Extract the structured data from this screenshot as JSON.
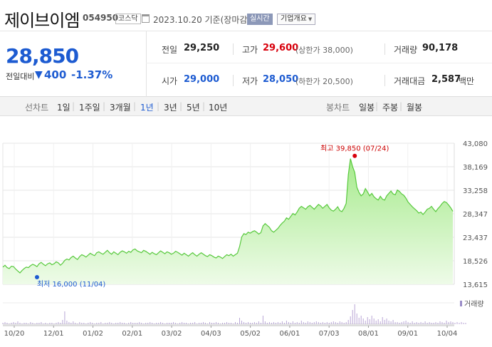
{
  "header": {
    "name": "제이브이엠",
    "code": "054950",
    "market_badge": "코스닥",
    "date": "2023.10.20 기준(장마감)",
    "live_button": "실시간",
    "info_button": "기업개요",
    "icons": {
      "calendar": "calendar-icon",
      "dropdown": "chevron-down-icon"
    }
  },
  "summary": {
    "price": "28,850",
    "change_label": "전일대비",
    "change_arrow": "▼",
    "change_value": "400",
    "change_rate": "-1.37%",
    "colors": {
      "down": "#1d5bd1",
      "up": "#d8000c"
    },
    "cells": [
      {
        "label": "전일",
        "value": "29,250",
        "sub": ""
      },
      {
        "label": "고가",
        "value": "29,600",
        "sub": "(상한가 38,000)"
      },
      {
        "label": "거래량",
        "value": "90,178",
        "sub": ""
      },
      {
        "label": "시가",
        "value": "29,000",
        "sub": ""
      },
      {
        "label": "저가",
        "value": "28,050",
        "sub": "(하한가 20,500)"
      },
      {
        "label": "거래대금",
        "value": "2,587",
        "sub": "백만"
      }
    ]
  },
  "periods": {
    "line_label": "선차트",
    "line_options": [
      "1일",
      "1주일",
      "3개월",
      "1년",
      "3년",
      "5년",
      "10년"
    ],
    "active": "1년",
    "candle_label": "봉차트",
    "candle_options": [
      "일봉",
      "주봉",
      "월봉"
    ]
  },
  "chart_data": {
    "type": "area",
    "color": "#57c93c",
    "y_ticks": [
      "43,080",
      "38,169",
      "33,258",
      "28,347",
      "23,437",
      "18,526",
      "13,615"
    ],
    "ylim": [
      13615,
      43080
    ],
    "x_ticks": [
      "10/20",
      "12/01",
      "01/02",
      "02/01",
      "03/02",
      "04/03",
      "05/02",
      "06/01",
      "07/03",
      "08/01",
      "09/01",
      "10/04"
    ],
    "grid": true,
    "high_annotation": "최고 39,850 (07/24)",
    "high": {
      "value": 39850,
      "index": 165
    },
    "low_annotation": "최저 16,000 (11/04)",
    "low": {
      "value": 16000,
      "index": 8
    },
    "volume_legend": "거래량",
    "prices": [
      17200,
      17600,
      17100,
      16900,
      17400,
      17300,
      16800,
      16400,
      16000,
      16500,
      16900,
      17200,
      17100,
      17500,
      17800,
      17600,
      17300,
      17900,
      18200,
      17800,
      17500,
      17900,
      18100,
      17700,
      17900,
      18300,
      18100,
      17600,
      18000,
      18600,
      18900,
      18700,
      19200,
      19500,
      19100,
      18800,
      19400,
      19800,
      19600,
      19300,
      19700,
      20100,
      19800,
      19600,
      20200,
      20400,
      20100,
      19900,
      20300,
      20700,
      20200,
      19900,
      20400,
      20100,
      19800,
      20300,
      20600,
      20400,
      20100,
      20500,
      20300,
      20800,
      21000,
      20600,
      20400,
      20200,
      20700,
      20500,
      20200,
      19900,
      20300,
      20000,
      19800,
      20200,
      20600,
      20300,
      20000,
      20400,
      20200,
      19900,
      20100,
      20500,
      20300,
      20000,
      19700,
      20100,
      19800,
      19500,
      19900,
      20200,
      19800,
      19500,
      19900,
      20200,
      19900,
      19600,
      19400,
      19800,
      19600,
      19300,
      19100,
      19500,
      19300,
      19000,
      19400,
      19800,
      19600,
      19900,
      19500,
      19800,
      20100,
      21500,
      23500,
      24200,
      24000,
      24500,
      24300,
      24600,
      24800,
      24500,
      24100,
      24400,
      25800,
      26300,
      25900,
      25500,
      24800,
      24500,
      24900,
      25300,
      25900,
      26400,
      26800,
      27500,
      27200,
      27800,
      28400,
      28100,
      28700,
      29500,
      29900,
      29600,
      29300,
      29800,
      30100,
      29700,
      29300,
      29800,
      30300,
      30000,
      29500,
      29900,
      30300,
      29600,
      29100,
      28900,
      29300,
      29800,
      29000,
      28800,
      29500,
      30500,
      36500,
      39850,
      38200,
      37000,
      33900,
      32800,
      32100,
      32500,
      33600,
      32900,
      32100,
      32600,
      31900,
      31500,
      31200,
      32000,
      31400,
      31200,
      32100,
      32600,
      33100,
      32500,
      32300,
      33300,
      33000,
      32500,
      32200,
      31600,
      30800,
      30300,
      29800,
      29400,
      29000,
      28500,
      28700,
      28200,
      28700,
      29300,
      29500,
      29900,
      29300,
      28800,
      29400,
      29900,
      30500,
      30900,
      30700,
      30200,
      29600,
      28850
    ],
    "volumes": [
      2,
      3,
      2,
      1,
      2,
      3,
      2,
      4,
      2,
      1,
      2,
      2,
      1,
      3,
      2,
      1,
      2,
      2,
      3,
      1,
      2,
      1,
      2,
      2,
      1,
      2,
      3,
      2,
      6,
      18,
      5,
      3,
      2,
      4,
      2,
      1,
      3,
      2,
      2,
      1,
      2,
      3,
      2,
      1,
      2,
      2,
      3,
      1,
      2,
      2,
      3,
      2,
      1,
      2,
      2,
      3,
      2,
      2,
      1,
      2,
      3,
      2,
      2,
      2,
      3,
      2,
      1,
      2,
      2,
      3,
      2,
      1,
      2,
      2,
      3,
      2,
      1,
      2,
      2,
      2,
      3,
      2,
      1,
      2,
      3,
      2,
      2,
      1,
      2,
      2,
      3,
      1,
      2,
      2,
      3,
      2,
      1,
      3,
      2,
      2,
      3,
      2,
      1,
      2,
      2,
      3,
      2,
      2,
      1,
      3,
      2,
      9,
      5,
      3,
      2,
      3,
      2,
      2,
      3,
      2,
      4,
      2,
      12,
      4,
      2,
      3,
      2,
      3,
      2,
      3,
      2,
      4,
      2,
      5,
      3,
      2,
      4,
      2,
      3,
      2,
      5,
      3,
      2,
      4,
      3,
      2,
      3,
      4,
      3,
      2,
      3,
      2,
      3,
      2,
      3,
      4,
      3,
      2,
      4,
      3,
      2,
      3,
      6,
      11,
      20,
      28,
      15,
      9,
      12,
      8,
      5,
      10,
      7,
      12,
      8,
      5,
      7,
      4,
      10,
      6,
      8,
      5,
      4,
      6,
      3,
      3,
      2,
      3,
      4,
      5,
      3,
      2,
      4,
      2,
      3,
      2,
      3,
      2,
      4,
      2,
      3,
      2,
      2,
      3,
      2,
      4,
      3,
      2,
      5,
      3,
      4,
      3,
      2,
      3,
      2,
      3,
      2,
      2
    ]
  }
}
